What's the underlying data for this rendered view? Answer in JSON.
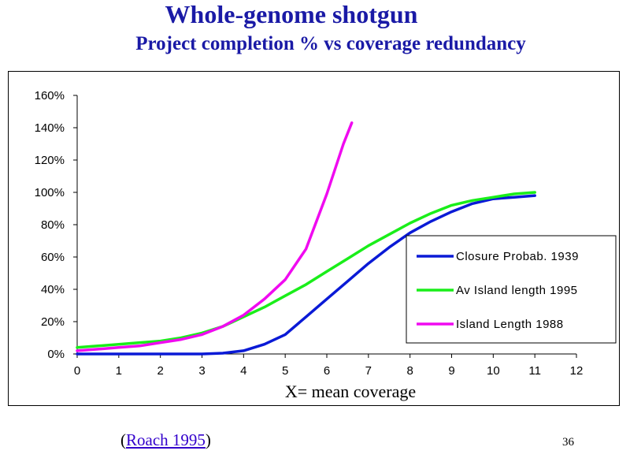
{
  "slide": {
    "title": "Whole-genome shotgun",
    "subtitle": "Project completion %  vs coverage redundancy",
    "citation_open": "(",
    "citation_link": "Roach 1995",
    "citation_close": ")",
    "page_number": "36"
  },
  "chart_data": {
    "type": "line",
    "xlabel": "X= mean coverage",
    "ylabel": "",
    "xlim": [
      0,
      12
    ],
    "ylim": [
      0,
      160
    ],
    "x_ticks": [
      "0",
      "1",
      "2",
      "3",
      "4",
      "5",
      "6",
      "7",
      "8",
      "9",
      "10",
      "11",
      "12"
    ],
    "y_ticks": [
      "0%",
      "20%",
      "40%",
      "60%",
      "80%",
      "100%",
      "120%",
      "140%",
      "160%"
    ],
    "grid": false,
    "legend_position": "right",
    "series": [
      {
        "name": "Closure Probab. 1939",
        "color": "#0a1ad6",
        "x": [
          0,
          1,
          2,
          3,
          3.5,
          4,
          4.5,
          5,
          5.5,
          6,
          6.5,
          7,
          7.5,
          8,
          8.5,
          9,
          9.5,
          10,
          10.5,
          11
        ],
        "y": [
          0,
          0,
          0,
          0,
          0.5,
          2,
          6,
          12,
          23,
          34,
          45,
          56,
          66,
          75,
          82,
          88,
          93,
          96,
          97,
          98
        ]
      },
      {
        "name": "Av Island length 1995",
        "color": "#1aee1a",
        "x": [
          0,
          0.5,
          1,
          1.5,
          2,
          2.5,
          3,
          3.5,
          4,
          4.5,
          5,
          5.5,
          6,
          6.5,
          7,
          7.5,
          8,
          8.5,
          9,
          9.5,
          10,
          10.5,
          11
        ],
        "y": [
          4,
          5,
          6,
          7,
          8,
          10,
          13,
          17,
          23,
          29,
          36,
          43,
          51,
          59,
          67,
          74,
          81,
          87,
          92,
          95,
          97,
          99,
          100
        ]
      },
      {
        "name": "Island Length 1988",
        "color": "#f00af0",
        "x": [
          0,
          0.5,
          1,
          1.5,
          2,
          2.5,
          3,
          3.5,
          4,
          4.5,
          5,
          5.5,
          6,
          6.4,
          6.6
        ],
        "y": [
          2,
          3,
          4,
          5,
          7,
          9,
          12,
          17,
          24,
          34,
          46,
          65,
          99,
          130,
          143
        ]
      }
    ]
  }
}
